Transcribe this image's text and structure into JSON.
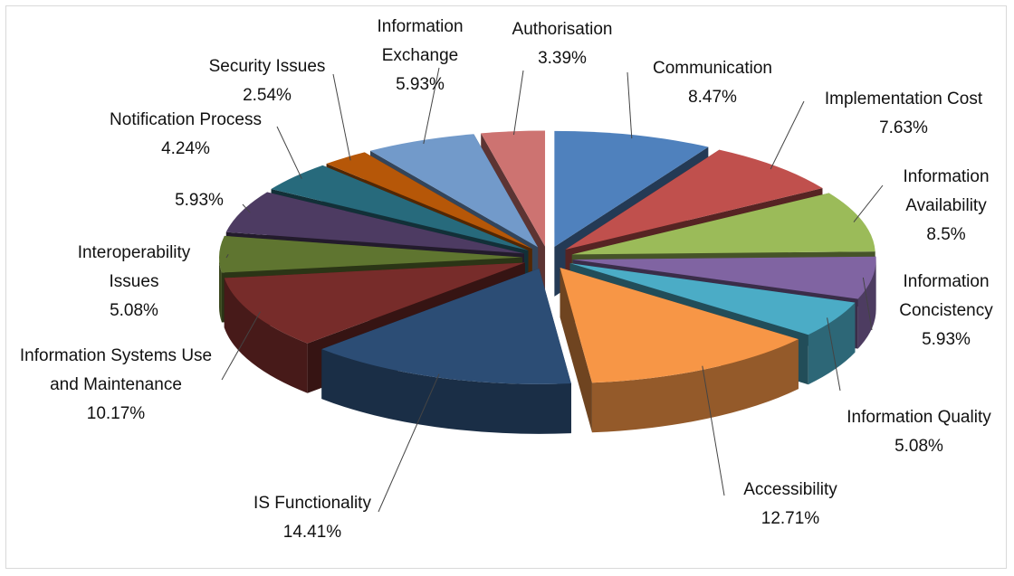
{
  "chart_data": {
    "type": "pie",
    "categories": [
      "Communication",
      "Implementation Cost",
      "Information Availability",
      "Information Concistency",
      "Information Quality",
      "Accessibility",
      "IS Functionality",
      "Information Systems Use and Maintenance",
      "Interoperability Issues",
      null,
      "Notification Process",
      "Security Issues",
      "Information Exchange",
      "Authorisation"
    ],
    "values": [
      8.47,
      7.63,
      8.5,
      5.93,
      5.08,
      12.71,
      14.41,
      10.17,
      5.08,
      5.93,
      4.24,
      2.54,
      5.93,
      3.39
    ],
    "value_labels": [
      "8.47%",
      "7.63%",
      "8.5%",
      "5.93%",
      "5.08%",
      "12.71%",
      "14.41%",
      "10.17%",
      "5.08%",
      "5.93%",
      "4.24%",
      "2.54%",
      "5.93%",
      "3.39%"
    ],
    "colors": [
      "#4f81bd",
      "#c0504d",
      "#9bbb59",
      "#8064a2",
      "#4bacc6",
      "#f79646",
      "#2c4d75",
      "#772c2a",
      "#5f7530",
      "#4d3b62",
      "#276a7c",
      "#b65708",
      "#729aca",
      "#cd7371"
    ]
  }
}
